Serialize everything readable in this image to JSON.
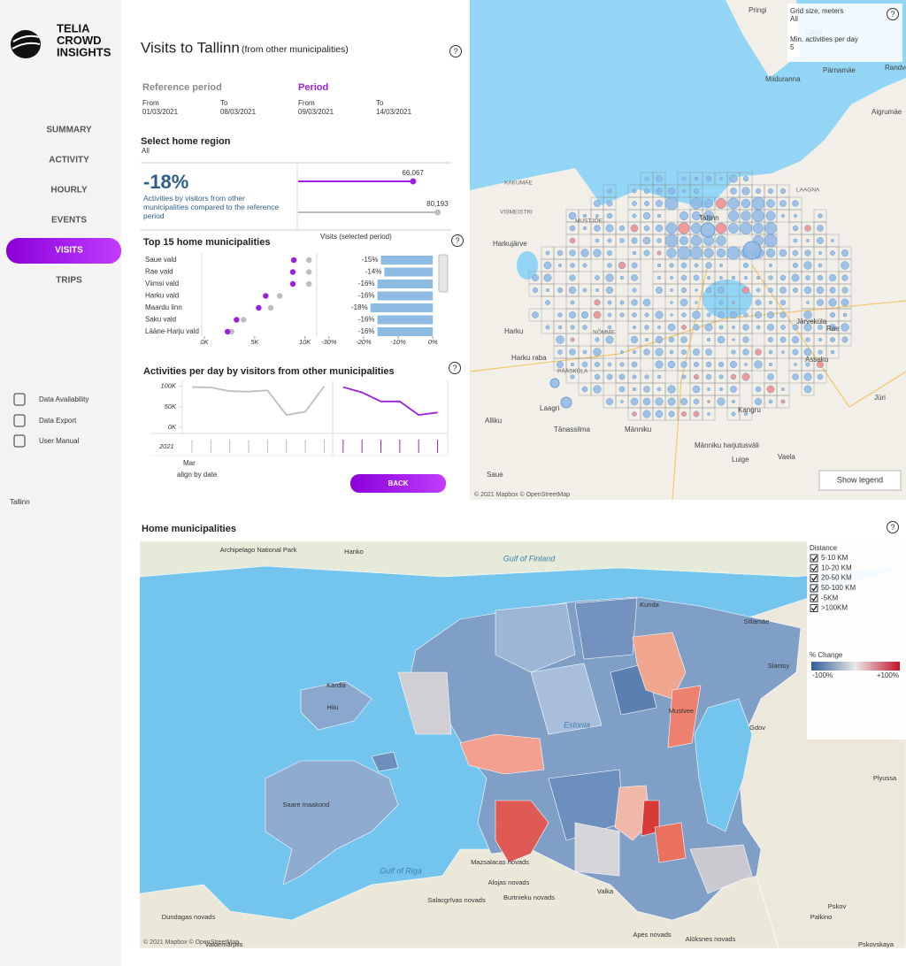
{
  "sidebar": {
    "logo": [
      "TELIA",
      "CROWD",
      "INSIGHTS"
    ],
    "nav": [
      {
        "label": "SUMMARY",
        "active": false
      },
      {
        "label": "ACTIVITY",
        "active": false
      },
      {
        "label": "HOURLY",
        "active": false
      },
      {
        "label": "EVENTS",
        "active": false
      },
      {
        "label": "VISITS",
        "active": true
      },
      {
        "label": "TRIPS",
        "active": false
      }
    ],
    "links": [
      "Data Availability",
      "Data Export",
      "User Manual"
    ],
    "location": "Tallinn"
  },
  "header": {
    "title": "Visits to Tallinn",
    "subtitle": "(from other municipalities)"
  },
  "periods": {
    "reference": {
      "label": "Reference period",
      "from_label": "From",
      "from": "01/03/2021",
      "to_label": "To",
      "to": "08/03/2021"
    },
    "period": {
      "label": "Period",
      "from_label": "From",
      "from": "09/03/2021",
      "to_label": "To",
      "to": "14/03/2021"
    }
  },
  "region": {
    "label": "Select home region",
    "value": "All"
  },
  "kpi": {
    "value": "-18%",
    "description": "Activities by visitors from other municipalities compared to the reference period",
    "comparison": {
      "values": [
        66067,
        80193
      ],
      "value_labels": [
        "66,067",
        "80,193"
      ],
      "colors": [
        "#9b1fe0",
        "#bdbdbd"
      ],
      "xlim": [
        0,
        88000
      ]
    }
  },
  "top_municipalities": {
    "title": "Top 15 home municipalities",
    "categories": [
      "Saue vald",
      "Rae vald",
      "Viimsi vald",
      "Harku vald",
      "Maardu linn",
      "Saku vald",
      "Lääne-Harju vald"
    ],
    "series": [
      {
        "color": "#9b1fe0",
        "values": [
          8900,
          8800,
          8800,
          6100,
          5400,
          3200,
          2300
        ]
      },
      {
        "color": "#bdbdbd",
        "values": [
          10400,
          10400,
          10400,
          7500,
          6600,
          3900,
          2700
        ]
      }
    ],
    "xlim": [
      0,
      11000
    ],
    "xticks": [
      {
        "value": 0,
        "label": "0K"
      },
      {
        "value": 5000,
        "label": "5K"
      },
      {
        "value": 10000,
        "label": "10K"
      }
    ],
    "change": {
      "header": "Visits (selected period)",
      "color": "#8dbbe2",
      "values": [
        -15,
        -14,
        -16,
        -16,
        -18,
        -16,
        -16
      ],
      "value_labels": [
        "-15%",
        "-14%",
        "-16%",
        "-16%",
        "-18%",
        "-16%",
        "-16%"
      ],
      "xlim": [
        -33,
        2
      ],
      "xticks": [
        {
          "value": -30,
          "label": "-30%"
        },
        {
          "value": -20,
          "label": "-20%"
        },
        {
          "value": -10,
          "label": "-10%"
        },
        {
          "value": 0,
          "label": "0%"
        }
      ]
    }
  },
  "daily": {
    "type": "line",
    "title": "Activities per day by visitors from other municipalities",
    "categories": [
      "Mar",
      null,
      null,
      null,
      null,
      null,
      null,
      null,
      null,
      null,
      null,
      null,
      null,
      null
    ],
    "year": "2021",
    "note": "align by date",
    "series": [
      {
        "color": "#bdbdbd",
        "values": [
          98000,
          97000,
          88000,
          87000,
          90000,
          30000,
          38000,
          100000,
          null,
          null,
          null,
          null,
          null,
          null
        ]
      },
      {
        "color": "#9b1fe0",
        "values": [
          null,
          null,
          null,
          null,
          null,
          null,
          null,
          null,
          98000,
          85000,
          63000,
          63000,
          30000,
          36000
        ]
      }
    ],
    "ylim": [
      0,
      110000
    ],
    "yticks": [
      {
        "value": 100000,
        "label": "100K"
      },
      {
        "value": 50000,
        "label": "50K"
      },
      {
        "value": 0,
        "label": "0K"
      }
    ]
  },
  "back_button": "BACK",
  "grid_map": {
    "grid_size_label": "Grid size, meters",
    "grid_size": "All",
    "min_label": "Min. activities per day",
    "min_value": "5",
    "legend_button": "Show legend",
    "attribution": "© 2021 Mapbox © OpenStreetMap",
    "places": [
      "Pringi",
      "Lubja",
      "Pärnamäe",
      "Randvere",
      "Miiduranna",
      "Aigrumäe",
      "Harkujärve",
      "Harku",
      "Harku raba",
      "Järveküla",
      "Rae",
      "Assaku",
      "Laagri",
      "Tänassilma",
      "Männiku",
      "Kangru",
      "Jüri",
      "Luige",
      "Vaela",
      "Alliku",
      "Saue",
      "Männiku harjutusväli",
      "KAKUMÄE",
      "VISMEISTRI",
      "MUSTJÕE",
      "NÕMME",
      "PÄÄSKÜLA",
      "LAAGNA",
      "Tallinn"
    ]
  },
  "home_map": {
    "title": "Home municipalities",
    "distance_label": "Distance",
    "distances": [
      "5-10 KM",
      "10-20 KM",
      "20-50 KM",
      "50-100 KM",
      "-5KM",
      ">100KM"
    ],
    "change_label": "% Change",
    "scale_min": "-100%",
    "scale_max": "+100%",
    "attribution": "© 2021 Mapbox © OpenStreetMap",
    "places": [
      "Archipelago National Park",
      "Hanko",
      "Gulf of Finland",
      "Kunda",
      "Sillamäe",
      "Slantsy",
      "Gdov",
      "Plyussa",
      "Kärdla",
      "Hiiu",
      "Estonia",
      "Mustvee",
      "Saare maakond",
      "Gulf of Riga",
      "Pskov",
      "Mazsalacas novads",
      "Alojas novads",
      "Salacgrīvas novads",
      "Burtnieku novads",
      "Valka",
      "Apes novads",
      "Alūksnes novads",
      "Palkino",
      "Dundagas novads",
      "Valdemārpils",
      "Pskovskaya"
    ]
  }
}
